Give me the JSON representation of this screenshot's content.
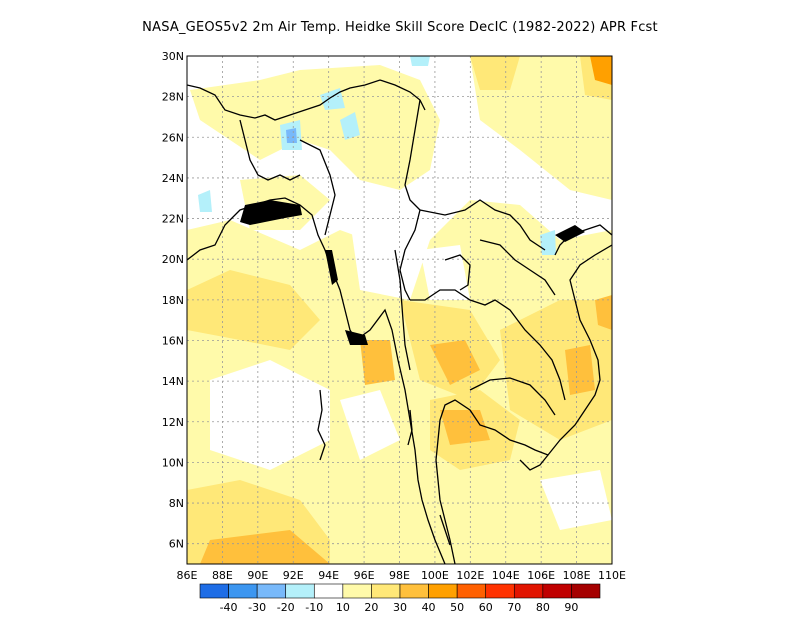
{
  "title": "NASA_GEOS5v2  2m Air Temp. Heidke Skill Score DecIC (1982-2022) APR Fcst",
  "map": {
    "lon_range": [
      86,
      110
    ],
    "lat_range": [
      5,
      30
    ],
    "lon_ticks": [
      "86E",
      "88E",
      "90E",
      "92E",
      "94E",
      "96E",
      "98E",
      "100E",
      "102E",
      "104E",
      "106E",
      "108E",
      "110E"
    ],
    "lat_ticks": [
      "6N",
      "8N",
      "10N",
      "12N",
      "14N",
      "16N",
      "18N",
      "20N",
      "22N",
      "24N",
      "26N",
      "28N",
      "30N"
    ],
    "grid": true
  },
  "colorbar": {
    "colors": [
      "#1e6de6",
      "#3c96f0",
      "#78b9fa",
      "#b4f0fa",
      "#ffffff",
      "#fffaaa",
      "#ffe878",
      "#ffc03c",
      "#ffa000",
      "#ff6000",
      "#ff3200",
      "#e11400",
      "#c00000",
      "#a50000"
    ],
    "labels": [
      "-40",
      "-30",
      "-20",
      "-10",
      "10",
      "20",
      "30",
      "40",
      "50",
      "60",
      "70",
      "80",
      "90"
    ]
  }
}
